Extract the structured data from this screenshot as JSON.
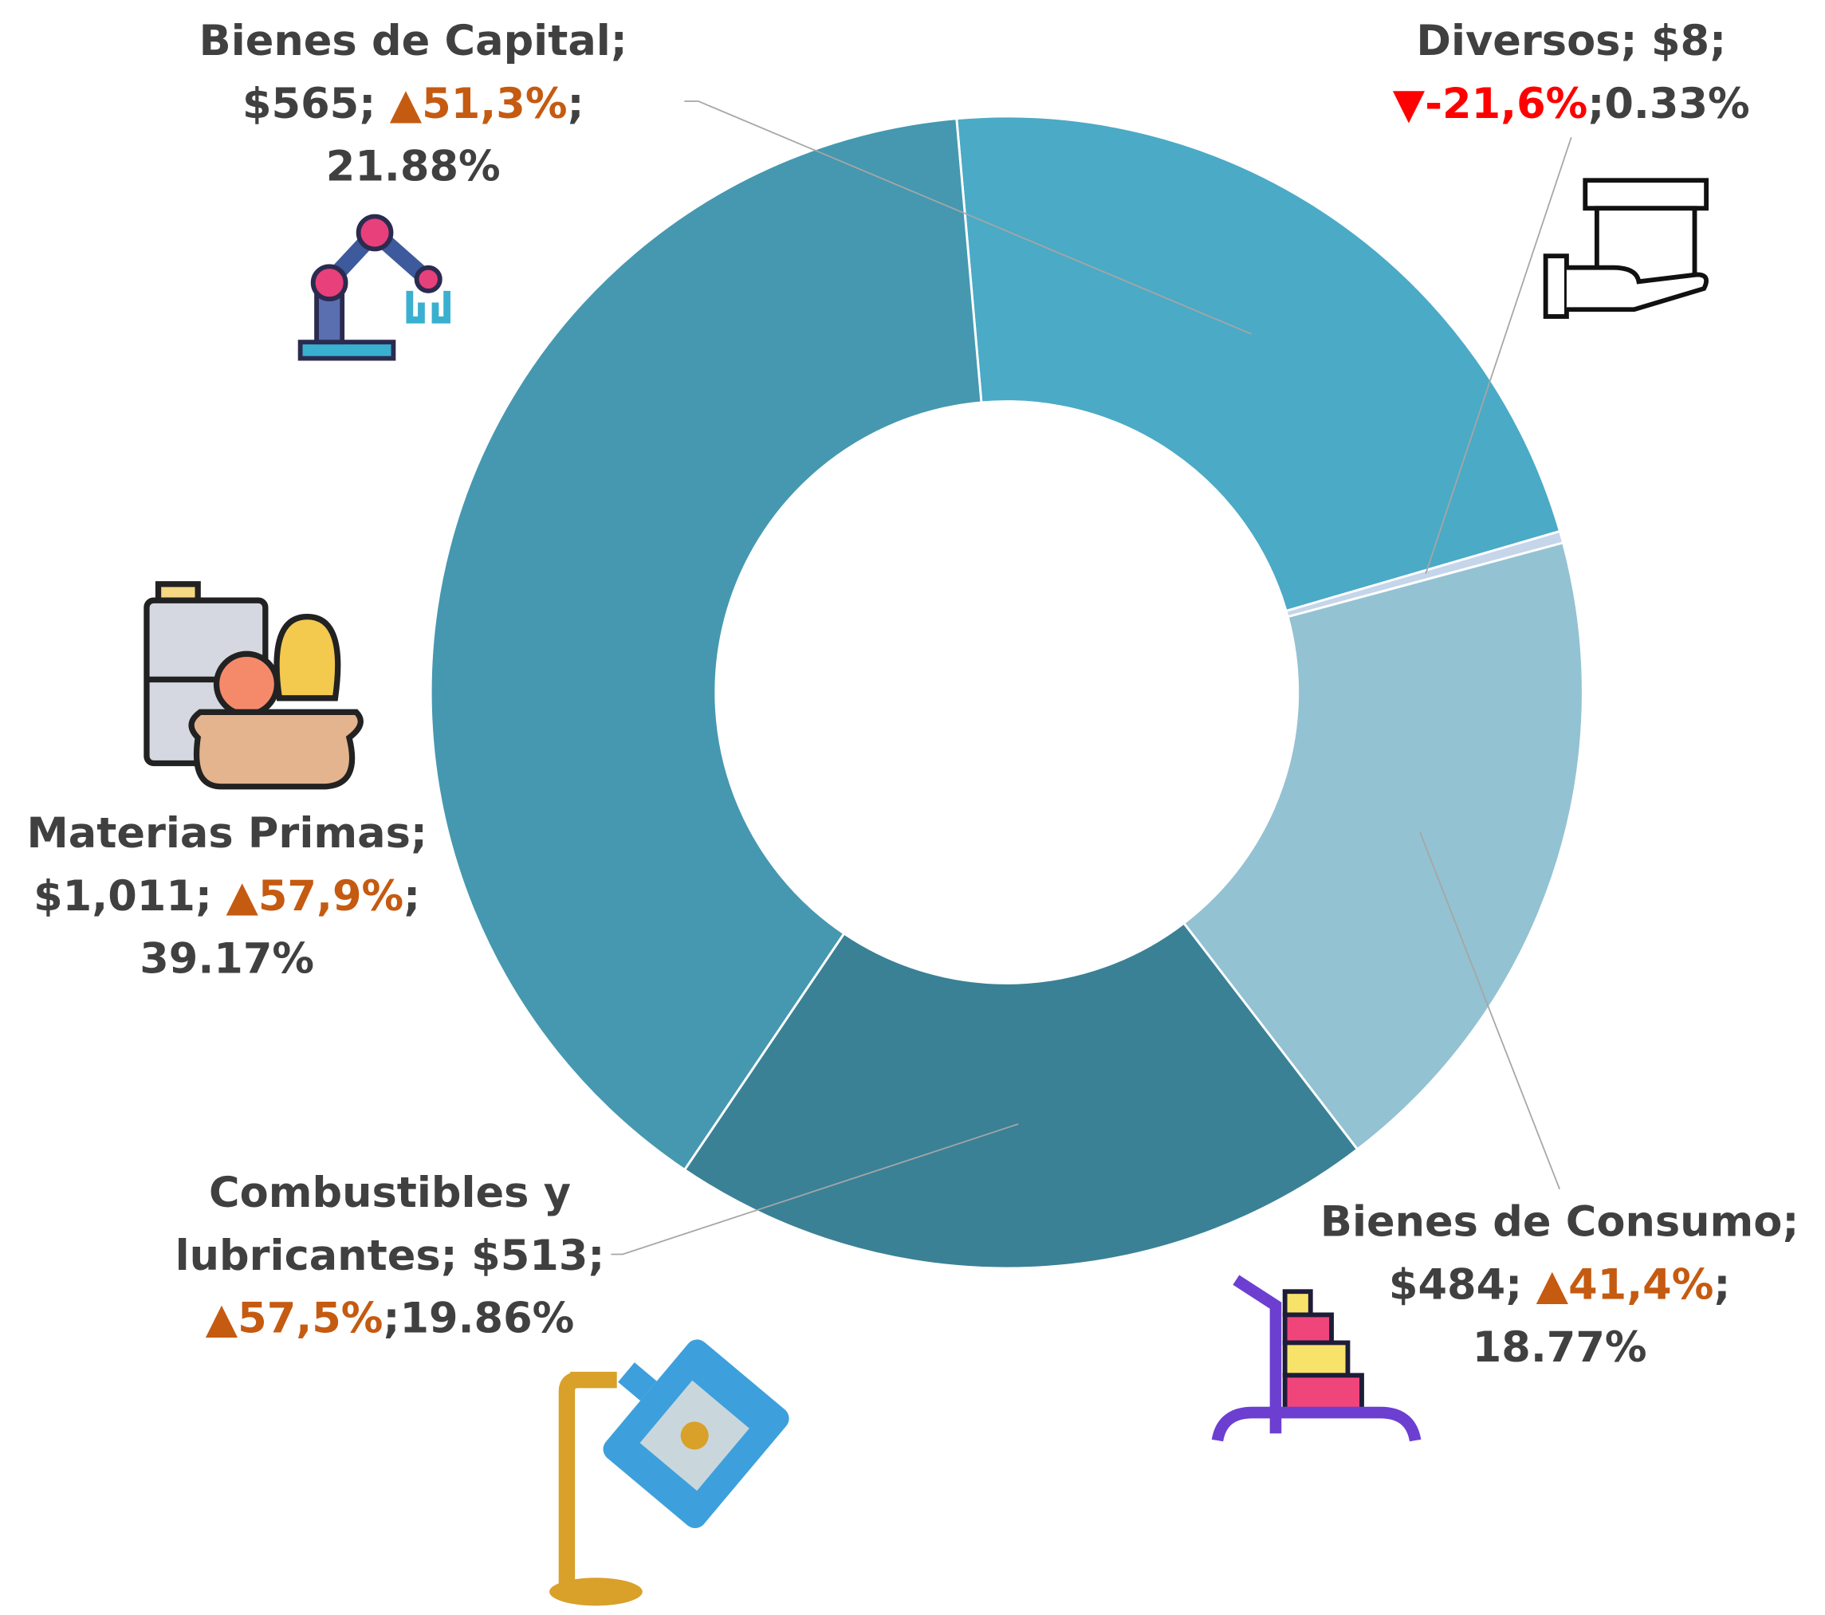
{
  "chart_data": {
    "type": "donut",
    "categories": [
      "Bienes de Capital",
      "Diversos",
      "Bienes de Consumo",
      "Combustibles y lubricantes",
      "Materias Primas"
    ],
    "values": [
      21.88,
      0.33,
      18.77,
      19.86,
      39.17
    ],
    "value_labels": [
      "21.88%",
      "0.33%",
      "18.77%",
      "19.86%",
      "39.17%"
    ],
    "amounts": [
      "$565",
      "$8",
      "$484",
      "$513",
      "$1,011"
    ],
    "changes": [
      "▲51,3%",
      "▼-21,6%",
      "▲41,4%",
      "▲57,5%",
      "▲57,9%"
    ],
    "change_colors": [
      "#c55a11",
      "#ff0000",
      "#c55a11",
      "#c55a11",
      "#c55a11"
    ],
    "separator": ";",
    "colors": [
      "#4baac6",
      "#c5d5ea",
      "#93c2d3",
      "#3a8196",
      "#4598b0"
    ]
  }
}
